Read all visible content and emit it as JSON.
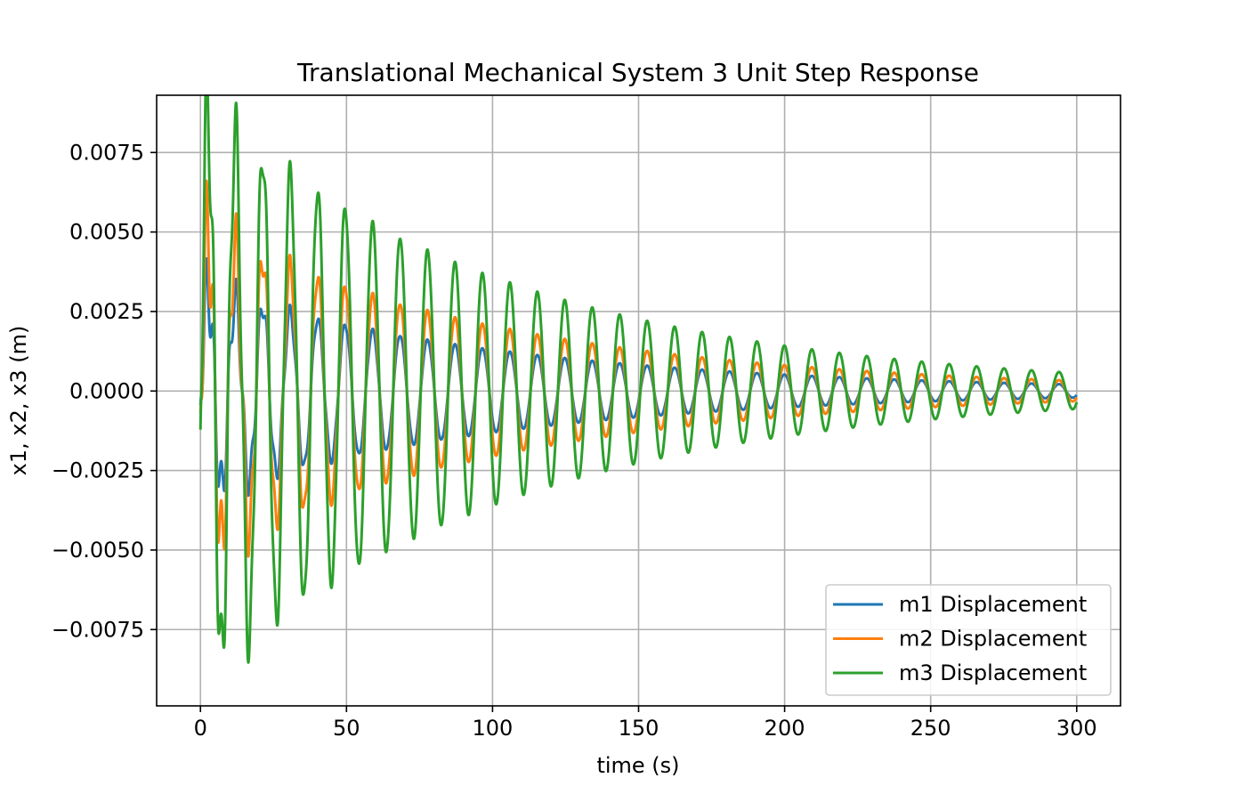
{
  "chart_data": {
    "type": "line",
    "title": "Translational Mechanical System 3 Unit Step Response",
    "xlabel": "time (s)",
    "ylabel": "x1, x2, x3 (m)",
    "xlim": [
      -15,
      315
    ],
    "ylim": [
      -0.0099,
      0.0093
    ],
    "x_ticks": [
      0,
      50,
      100,
      150,
      200,
      250,
      300
    ],
    "x_tick_labels": [
      "0",
      "50",
      "100",
      "150",
      "200",
      "250",
      "300"
    ],
    "y_ticks": [
      -0.0075,
      -0.005,
      -0.0025,
      0.0,
      0.0025,
      0.005,
      0.0075
    ],
    "y_tick_labels": [
      "−0.0075",
      "−0.0050",
      "−0.0025",
      "0.0000",
      "0.0025",
      "0.0050",
      "0.0075"
    ],
    "grid": true,
    "legend_position": "lower-right",
    "signal": {
      "t_start": 0,
      "t_end": 300,
      "fast_period_s": 9.4,
      "decay_time_constant_s": 108,
      "slow_period_s": 2.6,
      "slow_decay_time_constant_s": 18
    },
    "series": [
      {
        "name": "m1 Displacement",
        "color": "#1f77b4",
        "fast_amplitude": 0.0033,
        "fast_offset": 0.0009,
        "slow_amplitude": 0.0013
      },
      {
        "name": "m2 Displacement",
        "color": "#ff7f0e",
        "fast_amplitude": 0.0052,
        "fast_offset": 0.0003,
        "slow_amplitude": 0.0021
      },
      {
        "name": "m3 Displacement",
        "color": "#2ca02c",
        "fast_amplitude": 0.0091,
        "fast_offset": 0.0,
        "slow_amplitude": 0.0022
      }
    ]
  }
}
